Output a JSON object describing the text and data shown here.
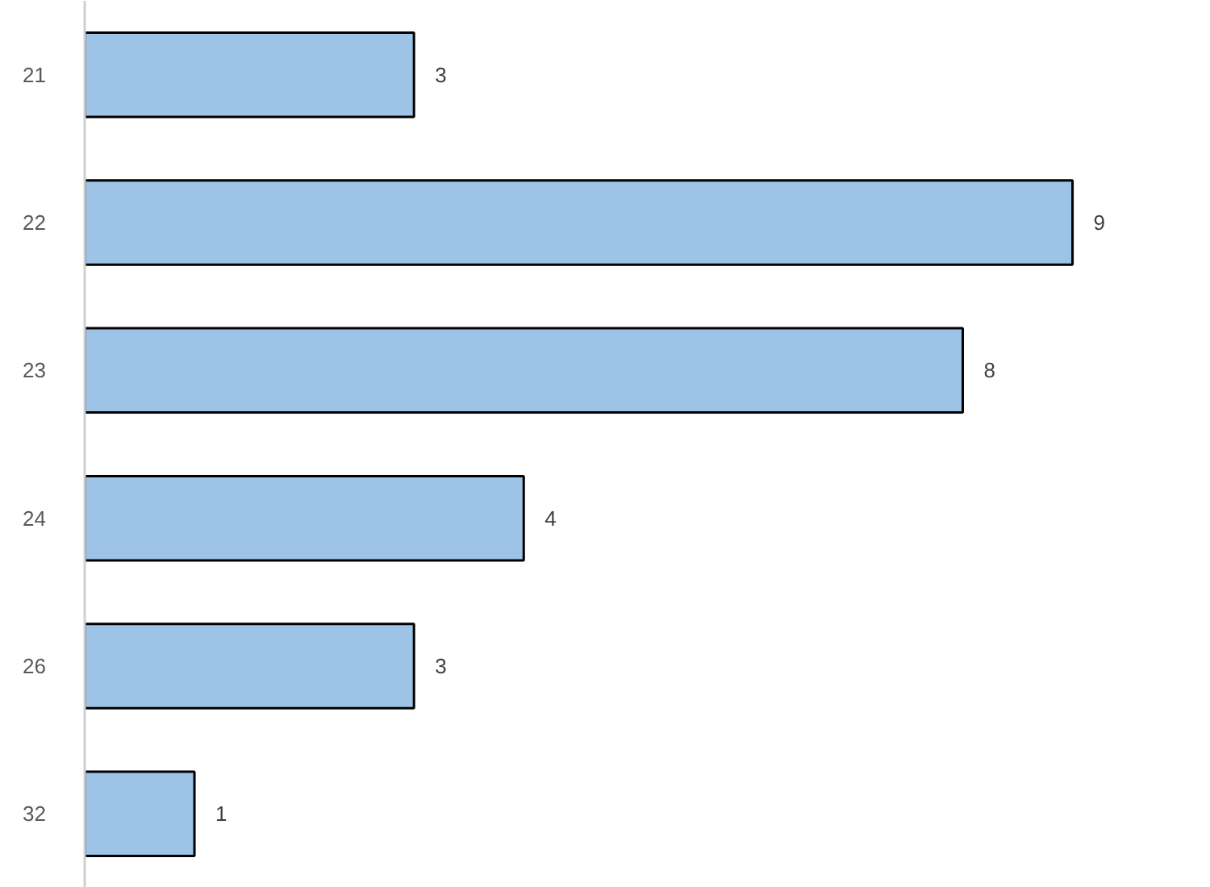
{
  "chart_data": {
    "type": "bar",
    "orientation": "horizontal",
    "categories": [
      "21",
      "22",
      "23",
      "24",
      "26",
      "32"
    ],
    "values": [
      3,
      9,
      8,
      4,
      3,
      1
    ],
    "color": "#9dc3e6",
    "data_labels": true
  }
}
